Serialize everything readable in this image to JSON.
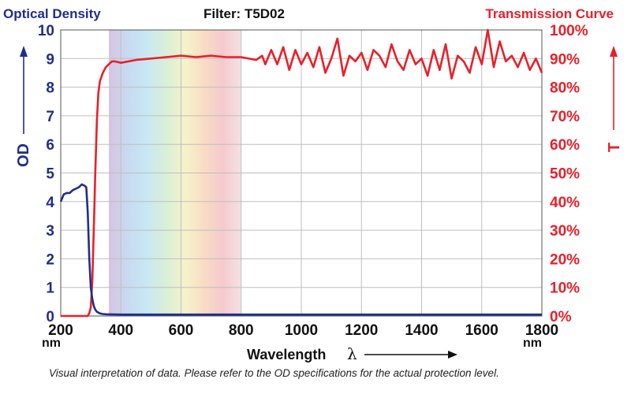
{
  "header": {
    "od_title": "Optical Density",
    "filter_title": "Filter: T5D02",
    "transmission_title": "Transmission Curve"
  },
  "caption": "Visual interpretation of data. Please refer to the OD specifications for the actual protection level.",
  "colors": {
    "od": "#1f2e8c",
    "transmission": "#e8202a",
    "grid": "#bfbfbf"
  },
  "chart_data": {
    "type": "line",
    "title": "Filter: T5D02",
    "xlabel": "Wavelength",
    "xlabel_symbol": "λ",
    "x_unit": "nm",
    "xlim": [
      200,
      1800
    ],
    "x_ticks": [
      "200",
      "400",
      "600",
      "800",
      "1000",
      "1200",
      "1400",
      "1600",
      "1800"
    ],
    "left_axis": {
      "label": "OD",
      "ylim": [
        0,
        10
      ],
      "ticks": [
        "0",
        "1",
        "2",
        "3",
        "4",
        "5",
        "6",
        "7",
        "8",
        "9",
        "10"
      ]
    },
    "right_axis": {
      "label": "T",
      "ylim": [
        0,
        100
      ],
      "ticks": [
        "0%",
        "10%",
        "20%",
        "30%",
        "40%",
        "50%",
        "60%",
        "70%",
        "80%",
        "90%",
        "100%"
      ]
    },
    "visible_band_nm": [
      360,
      800
    ],
    "series": [
      {
        "name": "Optical Density",
        "axis": "left",
        "x": [
          200,
          210,
          220,
          230,
          240,
          250,
          260,
          270,
          280,
          285,
          290,
          295,
          300,
          305,
          310,
          315,
          320,
          330,
          340,
          350,
          400,
          600,
          800,
          1000,
          1200,
          1400,
          1600,
          1800
        ],
        "y": [
          4.0,
          4.25,
          4.3,
          4.3,
          4.4,
          4.45,
          4.5,
          4.6,
          4.55,
          4.5,
          3.6,
          2.0,
          1.0,
          0.6,
          0.35,
          0.22,
          0.15,
          0.09,
          0.07,
          0.06,
          0.05,
          0.05,
          0.05,
          0.05,
          0.05,
          0.05,
          0.05,
          0.05
        ]
      },
      {
        "name": "Transmission Curve",
        "axis": "right",
        "x": [
          200,
          290,
          295,
          300,
          305,
          310,
          315,
          320,
          325,
          330,
          340,
          350,
          360,
          370,
          380,
          400,
          450,
          500,
          550,
          600,
          650,
          700,
          750,
          800,
          850,
          870,
          880,
          900,
          920,
          940,
          960,
          980,
          1000,
          1020,
          1040,
          1060,
          1080,
          1100,
          1120,
          1140,
          1160,
          1180,
          1200,
          1220,
          1240,
          1260,
          1280,
          1300,
          1320,
          1340,
          1360,
          1380,
          1400,
          1420,
          1440,
          1460,
          1480,
          1500,
          1520,
          1540,
          1560,
          1580,
          1600,
          1620,
          1640,
          1660,
          1680,
          1700,
          1720,
          1740,
          1760,
          1780,
          1800
        ],
        "y": [
          0,
          0,
          1,
          3,
          12,
          30,
          50,
          68,
          78,
          82,
          85,
          87,
          88,
          89,
          89,
          88.5,
          89.5,
          90,
          90.5,
          91,
          90.5,
          91,
          90.5,
          90.5,
          89.5,
          91,
          88,
          93,
          88,
          94,
          86,
          93,
          88,
          92,
          87,
          94,
          85,
          90,
          97,
          84,
          91,
          89,
          92,
          86,
          93,
          91,
          87,
          95,
          89,
          86,
          93,
          88,
          90,
          84,
          93,
          86,
          95,
          83,
          91,
          89,
          85,
          94,
          88,
          100,
          87,
          96,
          89,
          91,
          87,
          92,
          86,
          90,
          85
        ]
      }
    ]
  }
}
